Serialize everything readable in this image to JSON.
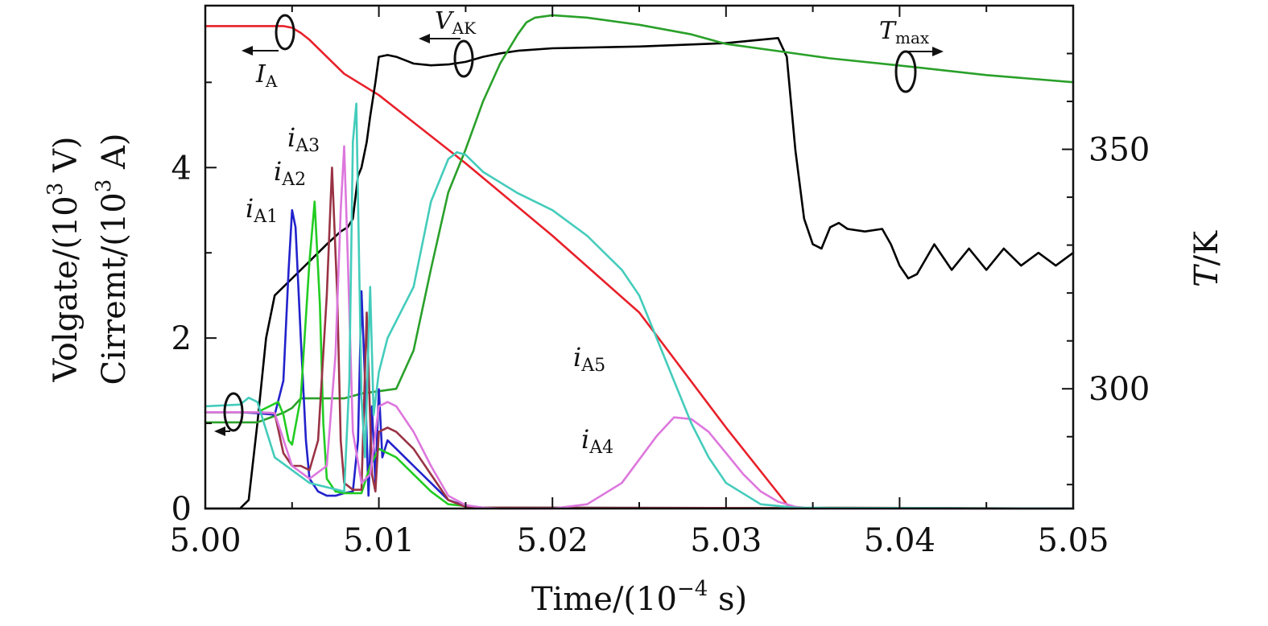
{
  "chart_data": {
    "type": "line",
    "title": "",
    "xlabel": "Time/(10",
    "xlabel_exp": "−4",
    "xlabel_unit": " s)",
    "ylabel_left_line1": "Volgate/(10",
    "ylabel_left_line1_exp": "3",
    "ylabel_left_line1_unit": " V)",
    "ylabel_left_line2": "Cirremt/(10",
    "ylabel_left_line2_exp": "3",
    "ylabel_left_line2_unit": " A)",
    "ylabel_right_italic": "T",
    "ylabel_right_unit": "/K",
    "xlim": [
      5.0,
      5.05
    ],
    "ylim_left": [
      0,
      5.9
    ],
    "ylim_right": [
      275,
      380
    ],
    "x_ticks": [
      5.0,
      5.01,
      5.02,
      5.03,
      5.04,
      5.05
    ],
    "x_tick_labels": [
      "5.00",
      "5.01",
      "5.02",
      "5.03",
      "5.04",
      "5.05"
    ],
    "y_left_ticks": [
      0,
      2,
      4
    ],
    "y_left_tick_labels": [
      "0",
      "2",
      "4"
    ],
    "y_right_ticks": [
      300,
      350
    ],
    "y_right_tick_labels": [
      "300",
      "350"
    ],
    "grid": false,
    "legend": "none",
    "annotations": {
      "ia1": {
        "base": "i",
        "sub": "A1",
        "color": "#3a3ad0"
      },
      "ia2": {
        "base": "i",
        "sub": "A2",
        "color": "#c8c850"
      },
      "ia3": {
        "base": "i",
        "sub": "A3",
        "color": "#9a5a6a"
      },
      "ia4": {
        "base": "i",
        "sub": "A4",
        "color": "#cc55cc"
      },
      "ia5": {
        "base": "i",
        "sub": "A5",
        "color": "#33cccc"
      },
      "vak": {
        "base": "V",
        "sub": "AK"
      },
      "ia": {
        "base": "I",
        "sub": "A"
      },
      "tmax": {
        "base": "T",
        "sub": "max"
      }
    },
    "series": [
      {
        "key": "I_A",
        "axis": "left",
        "color": "#e8202a",
        "x": [
          5.0,
          5.0045,
          5.005,
          5.0055,
          5.006,
          5.007,
          5.008,
          5.01,
          5.015,
          5.02,
          5.025,
          5.03,
          5.0337,
          5.036,
          5.05
        ],
        "y": [
          5.66,
          5.66,
          5.64,
          5.58,
          5.5,
          5.3,
          5.1,
          4.85,
          4.05,
          3.2,
          2.3,
          0.95,
          0.0,
          0.01,
          0.0
        ]
      },
      {
        "key": "V_AK",
        "axis": "left",
        "color": "#000000",
        "x": [
          5.0,
          5.002,
          5.0025,
          5.003,
          5.0035,
          5.004,
          5.005,
          5.006,
          5.007,
          5.0078,
          5.0082,
          5.0085,
          5.0088,
          5.009,
          5.0093,
          5.0095,
          5.0098,
          5.01,
          5.0105,
          5.011,
          5.012,
          5.013,
          5.014,
          5.015,
          5.016,
          5.017,
          5.018,
          5.02,
          5.025,
          5.03,
          5.033,
          5.0335,
          5.034,
          5.0345,
          5.035,
          5.0355,
          5.036,
          5.0365,
          5.037,
          5.038,
          5.039,
          5.0395,
          5.04,
          5.0405,
          5.041,
          5.042,
          5.043,
          5.044,
          5.045,
          5.046,
          5.047,
          5.048,
          5.049,
          5.05
        ],
        "y": [
          0.0,
          0.0,
          0.1,
          1.0,
          2.0,
          2.5,
          2.7,
          2.9,
          3.1,
          3.25,
          3.3,
          3.4,
          3.9,
          4.0,
          4.3,
          4.6,
          5.0,
          5.3,
          5.32,
          5.3,
          5.22,
          5.2,
          5.21,
          5.24,
          5.3,
          5.34,
          5.37,
          5.4,
          5.42,
          5.46,
          5.52,
          5.3,
          4.2,
          3.4,
          3.1,
          3.05,
          3.3,
          3.35,
          3.28,
          3.25,
          3.28,
          3.1,
          2.85,
          2.7,
          2.75,
          3.1,
          2.8,
          3.05,
          2.8,
          3.05,
          2.85,
          3.0,
          2.85,
          3.0
        ]
      },
      {
        "key": "T_max",
        "axis": "right",
        "color": "#2aa02a",
        "x": [
          5.0,
          5.003,
          5.0045,
          5.005,
          5.0055,
          5.006,
          5.008,
          5.009,
          5.01,
          5.011,
          5.012,
          5.013,
          5.014,
          5.015,
          5.016,
          5.017,
          5.018,
          5.0185,
          5.019,
          5.02,
          5.022,
          5.025,
          5.028,
          5.03,
          5.033,
          5.036,
          5.04,
          5.045,
          5.05
        ],
        "y": [
          293,
          293,
          295,
          296,
          298,
          298,
          298,
          299,
          299.5,
          300,
          308,
          325,
          341,
          350,
          360,
          368,
          374,
          376.5,
          377.5,
          378,
          377.5,
          376,
          374,
          372,
          370.5,
          369,
          367.5,
          365.5,
          364
        ]
      },
      {
        "key": "i_A1",
        "axis": "left",
        "color": "#2222cc",
        "x": [
          5.0,
          5.002,
          5.003,
          5.004,
          5.0045,
          5.0048,
          5.005,
          5.0052,
          5.0055,
          5.0058,
          5.006,
          5.0065,
          5.007,
          5.0075,
          5.008,
          5.0085,
          5.0088,
          5.009,
          5.0092,
          5.0094,
          5.0096,
          5.0098,
          5.01,
          5.0102,
          5.0105,
          5.011,
          5.012,
          5.013,
          5.014,
          5.015,
          5.016,
          5.05
        ],
        "y": [
          1.13,
          1.13,
          1.12,
          1.1,
          1.5,
          2.8,
          3.5,
          3.3,
          2.0,
          0.8,
          0.35,
          0.2,
          0.15,
          0.15,
          0.18,
          0.2,
          0.8,
          2.55,
          1.5,
          0.15,
          1.2,
          0.3,
          1.4,
          0.6,
          0.8,
          0.7,
          0.5,
          0.3,
          0.1,
          0.03,
          0.01,
          0.0
        ]
      },
      {
        "key": "i_A2",
        "axis": "left",
        "color": "#22cc22",
        "x": [
          5.0,
          5.003,
          5.0042,
          5.0045,
          5.0048,
          5.005,
          5.0055,
          5.006,
          5.0063,
          5.0066,
          5.0068,
          5.007,
          5.0075,
          5.008,
          5.0085,
          5.009,
          5.0095,
          5.01,
          5.011,
          5.012,
          5.013,
          5.014,
          5.016,
          5.05
        ],
        "y": [
          1.13,
          1.13,
          1.25,
          1.1,
          0.8,
          0.75,
          1.3,
          2.9,
          3.6,
          2.4,
          1.0,
          0.35,
          0.2,
          0.18,
          0.18,
          0.18,
          0.5,
          0.7,
          0.6,
          0.4,
          0.2,
          0.05,
          0.01,
          0.0
        ]
      },
      {
        "key": "i_A3",
        "axis": "left",
        "color": "#993344",
        "x": [
          5.0,
          5.003,
          5.004,
          5.0045,
          5.005,
          5.0055,
          5.006,
          5.0065,
          5.007,
          5.0073,
          5.0076,
          5.0078,
          5.008,
          5.0085,
          5.009,
          5.0093,
          5.0096,
          5.0098,
          5.01,
          5.0105,
          5.011,
          5.012,
          5.013,
          5.014,
          5.015,
          5.016,
          5.05
        ],
        "y": [
          1.13,
          1.13,
          1.12,
          0.65,
          0.5,
          0.5,
          0.45,
          0.8,
          2.5,
          4.0,
          2.5,
          0.8,
          0.3,
          0.22,
          0.22,
          2.3,
          0.4,
          0.2,
          0.9,
          0.95,
          0.9,
          0.7,
          0.4,
          0.1,
          0.02,
          0.01,
          0.0
        ]
      },
      {
        "key": "i_A4",
        "axis": "left",
        "color": "#dd77dd",
        "x": [
          5.0,
          5.003,
          5.004,
          5.005,
          5.006,
          5.007,
          5.0075,
          5.0078,
          5.008,
          5.0082,
          5.0085,
          5.009,
          5.0095,
          5.01,
          5.0105,
          5.011,
          5.012,
          5.013,
          5.014,
          5.015,
          5.016,
          5.017,
          5.018,
          5.02,
          5.022,
          5.024,
          5.026,
          5.027,
          5.028,
          5.029,
          5.03,
          5.031,
          5.032,
          5.033,
          5.034,
          5.035,
          5.05
        ],
        "y": [
          1.13,
          1.13,
          1.12,
          0.5,
          0.35,
          0.5,
          1.8,
          3.5,
          4.25,
          3.0,
          0.9,
          0.3,
          0.4,
          1.2,
          1.25,
          1.2,
          0.9,
          0.5,
          0.15,
          0.04,
          0.01,
          0.0,
          0.0,
          0.0,
          0.05,
          0.3,
          0.85,
          1.07,
          1.05,
          0.9,
          0.65,
          0.4,
          0.2,
          0.08,
          0.02,
          0.0,
          0.0
        ]
      },
      {
        "key": "i_A5",
        "axis": "left",
        "color": "#44ccbb",
        "x": [
          5.0,
          5.002,
          5.0025,
          5.003,
          5.004,
          5.005,
          5.006,
          5.007,
          5.008,
          5.0083,
          5.0085,
          5.0087,
          5.009,
          5.0092,
          5.0095,
          5.0097,
          5.01,
          5.0105,
          5.011,
          5.012,
          5.013,
          5.014,
          5.0145,
          5.015,
          5.016,
          5.018,
          5.02,
          5.022,
          5.024,
          5.025,
          5.026,
          5.027,
          5.028,
          5.029,
          5.03,
          5.032,
          5.034,
          5.05
        ],
        "y": [
          1.2,
          1.22,
          1.3,
          1.25,
          0.6,
          0.45,
          0.3,
          0.25,
          0.2,
          1.5,
          4.3,
          4.75,
          1.3,
          0.6,
          2.6,
          1.1,
          1.6,
          2.0,
          2.2,
          2.6,
          3.6,
          4.1,
          4.18,
          4.15,
          3.95,
          3.7,
          3.5,
          3.2,
          2.8,
          2.5,
          2.0,
          1.5,
          1.0,
          0.6,
          0.3,
          0.05,
          0.01,
          0.0
        ]
      }
    ]
  }
}
